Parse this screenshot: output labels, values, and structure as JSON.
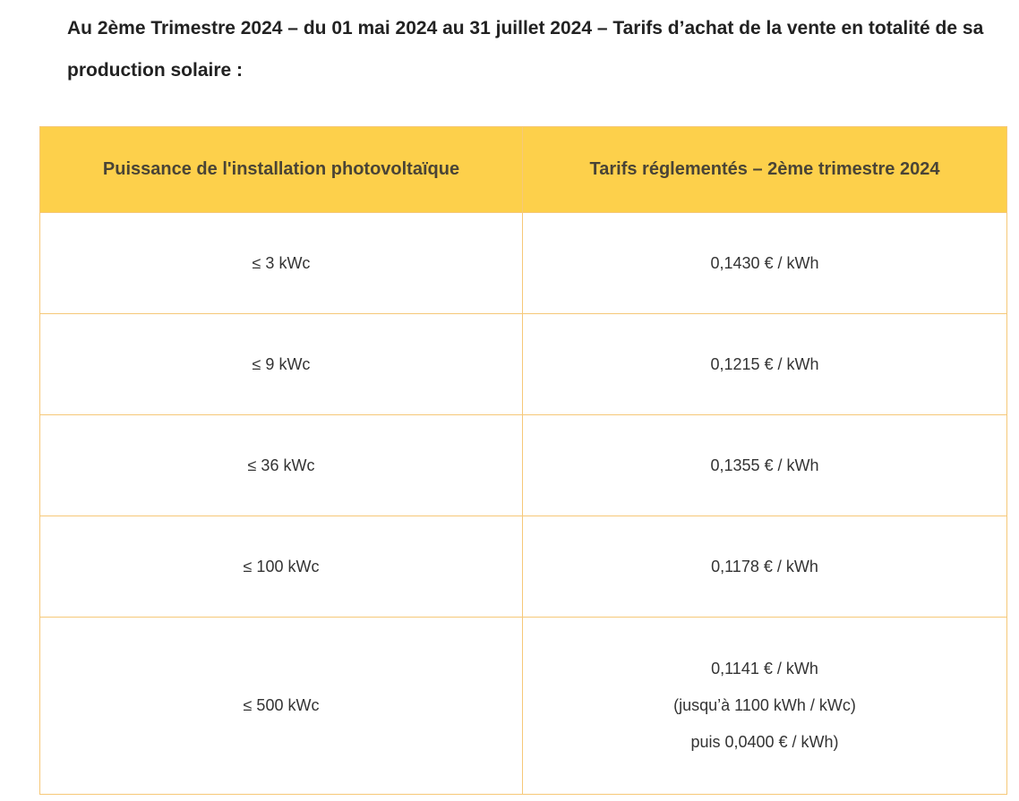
{
  "intro": "Au 2ème Trimestre 2024 – du 01 mai 2024 au 31 juillet 2024 – Tarifs d’achat de la vente en totalité de sa production solaire :",
  "table": {
    "headers": [
      "Puissance de l'installation photovoltaïque",
      "Tarifs réglementés – 2ème trimestre 2024"
    ],
    "rows": [
      {
        "power": "≤ 3 kWc",
        "tariff": [
          "0,1430 € / kWh"
        ]
      },
      {
        "power": "≤ 9 kWc",
        "tariff": [
          "0,1215 € / kWh"
        ]
      },
      {
        "power": "≤ 36 kWc",
        "tariff": [
          "0,1355 € / kWh"
        ]
      },
      {
        "power": "≤ 100 kWc",
        "tariff": [
          "0,1178 € / kWh"
        ]
      },
      {
        "power": "≤ 500 kWc",
        "tariff": [
          "0,1141 € / kWh",
          "(jusqu’à 1100 kWh / kWc)",
          "puis 0,0400 € / kWh)"
        ]
      }
    ]
  },
  "colors": {
    "header_bg": "#fdd04b",
    "border": "#f6c878"
  }
}
